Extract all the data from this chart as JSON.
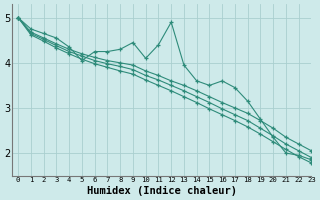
{
  "xlabel": "Humidex (Indice chaleur)",
  "bg_color": "#ceeaea",
  "grid_color": "#aacfcf",
  "line_color": "#2e8b7a",
  "xlim": [
    -0.5,
    23
  ],
  "ylim": [
    1.5,
    5.3
  ],
  "yticks": [
    2,
    3,
    4,
    5
  ],
  "xticks": [
    0,
    1,
    2,
    3,
    4,
    5,
    6,
    7,
    8,
    9,
    10,
    11,
    12,
    13,
    14,
    15,
    16,
    17,
    18,
    19,
    20,
    21,
    22,
    23
  ],
  "lines": [
    {
      "x": [
        0,
        1,
        2,
        3,
        4,
        5,
        6,
        7,
        8,
        9,
        10,
        11,
        12,
        13,
        14,
        15,
        16,
        17,
        18,
        19,
        20,
        21,
        22,
        23
      ],
      "y": [
        5.0,
        4.75,
        4.65,
        4.55,
        4.35,
        4.05,
        4.25,
        4.25,
        4.3,
        4.45,
        4.1,
        4.4,
        4.9,
        3.95,
        3.6,
        3.5,
        3.6,
        3.45,
        3.15,
        2.75,
        2.35,
        2.0,
        1.95,
        1.85
      ]
    },
    {
      "x": [
        0,
        1,
        2,
        3,
        4,
        5,
        6,
        7,
        8,
        9,
        10,
        11,
        12,
        13,
        14,
        15,
        16,
        17,
        18,
        19,
        20,
        21,
        22,
        23
      ],
      "y": [
        5.0,
        4.68,
        4.55,
        4.42,
        4.3,
        4.2,
        4.12,
        4.05,
        4.0,
        3.95,
        3.82,
        3.72,
        3.6,
        3.5,
        3.38,
        3.25,
        3.12,
        3.0,
        2.88,
        2.72,
        2.55,
        2.35,
        2.2,
        2.05
      ]
    },
    {
      "x": [
        0,
        1,
        2,
        3,
        4,
        5,
        6,
        7,
        8,
        9,
        10,
        11,
        12,
        13,
        14,
        15,
        16,
        17,
        18,
        19,
        20,
        21,
        22,
        23
      ],
      "y": [
        5.0,
        4.65,
        4.52,
        4.38,
        4.25,
        4.15,
        4.05,
        3.98,
        3.92,
        3.85,
        3.72,
        3.62,
        3.5,
        3.38,
        3.25,
        3.12,
        2.98,
        2.85,
        2.72,
        2.55,
        2.38,
        2.2,
        2.05,
        1.9
      ]
    },
    {
      "x": [
        0,
        1,
        2,
        3,
        4,
        5,
        6,
        7,
        8,
        9,
        10,
        11,
        12,
        13,
        14,
        15,
        16,
        17,
        18,
        19,
        20,
        21,
        22,
        23
      ],
      "y": [
        5.0,
        4.62,
        4.48,
        4.33,
        4.2,
        4.08,
        3.98,
        3.9,
        3.82,
        3.75,
        3.62,
        3.5,
        3.38,
        3.25,
        3.12,
        2.98,
        2.85,
        2.72,
        2.58,
        2.42,
        2.25,
        2.08,
        1.92,
        1.78
      ]
    }
  ]
}
